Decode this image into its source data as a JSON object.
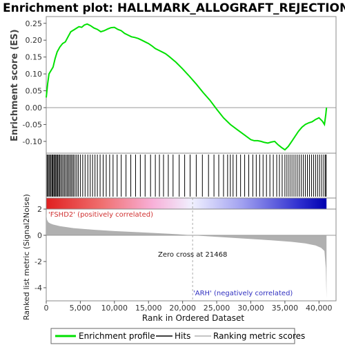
{
  "title": "Enrichment plot: HALLMARK_ALLOGRAFT_REJECTION",
  "colors": {
    "es_line": "#00e000",
    "hits": "#000000",
    "metric_fill": "#b0b0b0",
    "pos_label": "#d03030",
    "neg_label": "#3030c0",
    "zero_line": "#999999"
  },
  "chart_data": [
    {
      "name": "enrichment-profile",
      "type": "line",
      "ylabel": "Enrichment score (ES)",
      "ylim": [
        -0.135,
        0.27
      ],
      "yticks": [
        -0.1,
        -0.05,
        0.0,
        0.05,
        0.1,
        0.15,
        0.2,
        0.25
      ],
      "ytick_labels": [
        "-0.10",
        "-0.05",
        "0.00",
        "0.05",
        "0.10",
        "0.15",
        "0.20",
        "0.25"
      ],
      "xlim": [
        0,
        42500
      ],
      "x": [
        0,
        200,
        400,
        700,
        1000,
        1300,
        1600,
        2000,
        2400,
        2800,
        3200,
        3600,
        4000,
        4400,
        4800,
        5200,
        5600,
        6000,
        6500,
        7000,
        7500,
        8000,
        8500,
        9000,
        9500,
        10000,
        10500,
        11000,
        11500,
        12000,
        12500,
        13000,
        13500,
        14000,
        14500,
        15000,
        15500,
        16000,
        16500,
        17000,
        17500,
        18000,
        19000,
        20000,
        21000,
        22000,
        23000,
        24000,
        25000,
        26000,
        27000,
        28000,
        29000,
        30000,
        30500,
        31000,
        31500,
        32000,
        32500,
        33000,
        33500,
        34000,
        34500,
        35000,
        35500,
        36000,
        36500,
        37000,
        37500,
        38000,
        38500,
        39000,
        39500,
        40000,
        40500,
        40800,
        41000,
        41100
      ],
      "y": [
        0.03,
        0.07,
        0.1,
        0.11,
        0.12,
        0.145,
        0.165,
        0.18,
        0.19,
        0.195,
        0.21,
        0.225,
        0.23,
        0.235,
        0.24,
        0.238,
        0.245,
        0.248,
        0.243,
        0.236,
        0.232,
        0.225,
        0.228,
        0.233,
        0.237,
        0.238,
        0.232,
        0.228,
        0.22,
        0.215,
        0.21,
        0.208,
        0.205,
        0.2,
        0.195,
        0.19,
        0.183,
        0.175,
        0.17,
        0.165,
        0.16,
        0.152,
        0.135,
        0.115,
        0.093,
        0.07,
        0.045,
        0.022,
        -0.005,
        -0.03,
        -0.05,
        -0.065,
        -0.08,
        -0.095,
        -0.098,
        -0.098,
        -0.1,
        -0.103,
        -0.105,
        -0.102,
        -0.1,
        -0.11,
        -0.118,
        -0.125,
        -0.115,
        -0.1,
        -0.085,
        -0.07,
        -0.058,
        -0.05,
        -0.045,
        -0.042,
        -0.035,
        -0.03,
        -0.04,
        -0.05,
        -0.02,
        0.0
      ]
    },
    {
      "name": "hits",
      "type": "scatter",
      "xlim": [
        0,
        42500
      ],
      "hit_positions": [
        120,
        260,
        410,
        560,
        700,
        860,
        980,
        1120,
        1260,
        1400,
        1540,
        1680,
        1830,
        1980,
        2150,
        2330,
        2520,
        2700,
        2900,
        3080,
        3270,
        3450,
        3640,
        3820,
        4010,
        4230,
        4470,
        4700,
        5000,
        5350,
        5700,
        6100,
        6450,
        6800,
        7150,
        7500,
        7900,
        8350,
        8800,
        9300,
        9800,
        10400,
        11000,
        11700,
        12400,
        13100,
        13800,
        14500,
        15300,
        16000,
        16600,
        17200,
        17900,
        18600,
        19500,
        20300,
        21100,
        22000,
        22900,
        23800,
        24600,
        25300,
        26000,
        26600,
        27000,
        27400,
        27900,
        28500,
        29100,
        29700,
        30300,
        30800,
        31300,
        31800,
        32300,
        32800,
        33300,
        33800,
        34200,
        34600,
        35000,
        35300,
        35600,
        35900,
        36200,
        36500,
        36800,
        37100,
        37400,
        37700,
        38000,
        38300,
        38600,
        38900,
        39200,
        39500,
        39800,
        40100,
        40400,
        40700,
        40950,
        41050
      ]
    },
    {
      "name": "ranked-metric",
      "type": "area",
      "xlabel": "Rank in Ordered Dataset",
      "ylabel": "Ranked list metric (Signal2Noise)",
      "xlim": [
        0,
        42500
      ],
      "ylim": [
        -5.0,
        2.0
      ],
      "xticks": [
        0,
        5000,
        10000,
        15000,
        20000,
        25000,
        30000,
        35000,
        40000
      ],
      "xtick_labels": [
        "0",
        "5,000",
        "10,000",
        "15,000",
        "20,000",
        "25,000",
        "30,000",
        "35,000",
        "40,000"
      ],
      "yticks": [
        -4,
        -2,
        0,
        2
      ],
      "ytick_labels": [
        "-4",
        "-2",
        "0",
        "2"
      ],
      "x": [
        0,
        100,
        300,
        600,
        1000,
        2000,
        4000,
        7000,
        10000,
        14000,
        18000,
        21468,
        25000,
        29000,
        33000,
        36000,
        38000,
        39500,
        40300,
        40800,
        41000,
        41100
      ],
      "y": [
        1.7,
        1.2,
        1.0,
        0.9,
        0.82,
        0.7,
        0.55,
        0.42,
        0.32,
        0.22,
        0.12,
        0.0,
        -0.12,
        -0.25,
        -0.38,
        -0.5,
        -0.62,
        -0.78,
        -0.95,
        -1.2,
        -2.5,
        -4.8
      ],
      "zero_cross": 21468,
      "zero_cross_label": "Zero cross at 21468",
      "pos_label": "'FSHD2' (positively correlated)",
      "neg_label": "'ARH' (negatively correlated)"
    }
  ],
  "legend": {
    "items": [
      {
        "label": "Enrichment profile",
        "color": "#00e000"
      },
      {
        "label": "Hits",
        "color": "#000000"
      },
      {
        "label": "Ranking metric scores",
        "color": "#b0b0b0"
      }
    ]
  }
}
